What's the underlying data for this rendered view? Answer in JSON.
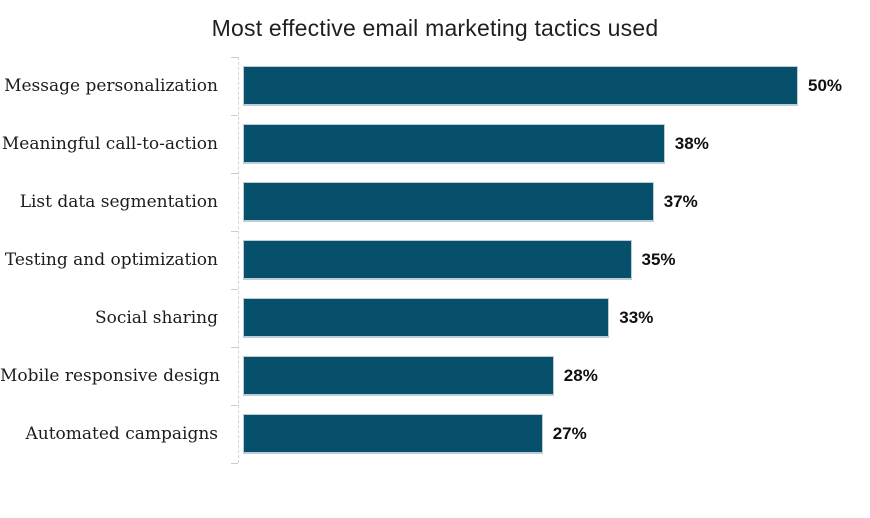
{
  "chart_data": {
    "type": "bar",
    "orientation": "horizontal",
    "title": "Most effective email marketing tactics used",
    "categories": [
      "Message personalization",
      "Meaningful call-to-action",
      "List data segmentation",
      "Testing and optimization",
      "Social sharing",
      "Mobile responsive design",
      "Automated campaigns"
    ],
    "values": [
      50,
      38,
      37,
      35,
      33,
      28,
      27
    ],
    "value_labels": [
      "50%",
      "38%",
      "37%",
      "35%",
      "33%",
      "28%",
      "27%"
    ],
    "xlabel": "",
    "ylabel": "",
    "xlim": [
      0,
      50
    ],
    "grid": false,
    "legend": false,
    "colors": {
      "bar_fill": "#06506b",
      "bar_edge": "#bccdd6",
      "axis_line": "#d4d4d4",
      "category_label": "#1c1c1c",
      "value_label": "#101010",
      "title": "#1f1f1f"
    }
  }
}
